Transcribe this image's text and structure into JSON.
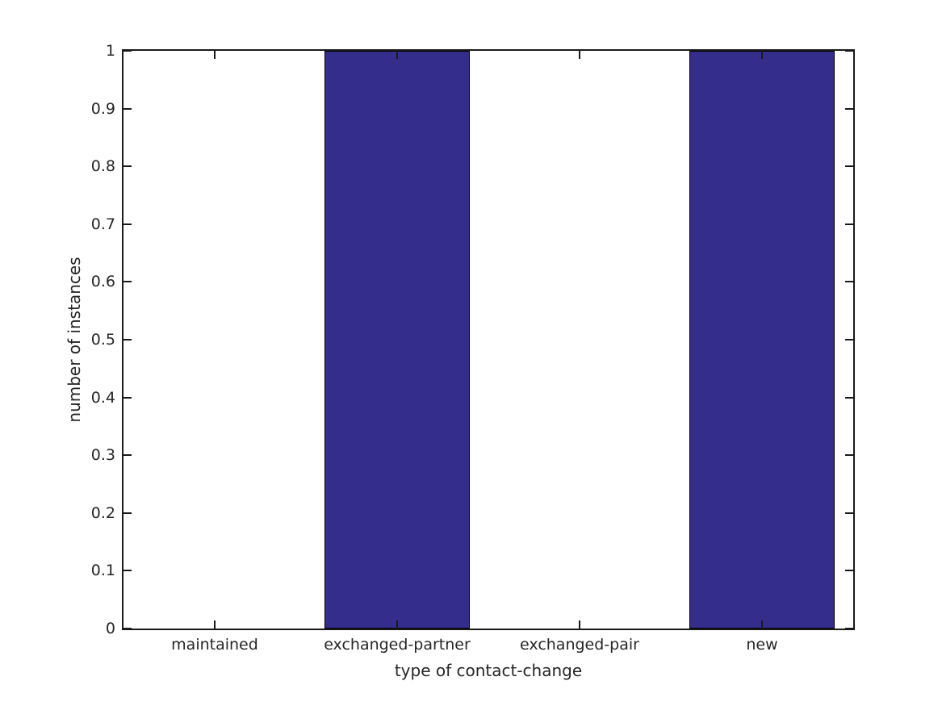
{
  "chart_data": {
    "type": "bar",
    "categories": [
      "maintained",
      "exchanged-partner",
      "exchanged-pair",
      "new"
    ],
    "values": [
      0,
      1,
      0,
      1
    ],
    "title": "",
    "xlabel": "type of contact-change",
    "ylabel": "number of instances",
    "ylim": [
      0,
      1
    ],
    "yticks": [
      0,
      0.1,
      0.2,
      0.3,
      0.4,
      0.5,
      0.6,
      0.7,
      0.8,
      0.9,
      1
    ],
    "ytick_labels": [
      "0",
      "0.1",
      "0.2",
      "0.3",
      "0.4",
      "0.5",
      "0.6",
      "0.7",
      "0.8",
      "0.9",
      "1"
    ],
    "bar_width_fraction": 0.8,
    "bar_color": "#352d8c",
    "bar_edge_color": "#000000",
    "axis_color": "#1a1a1a",
    "text_color": "#262626",
    "background_color": "#ffffff",
    "grid": false,
    "legend": null,
    "tick_direction": "in",
    "box": true
  }
}
